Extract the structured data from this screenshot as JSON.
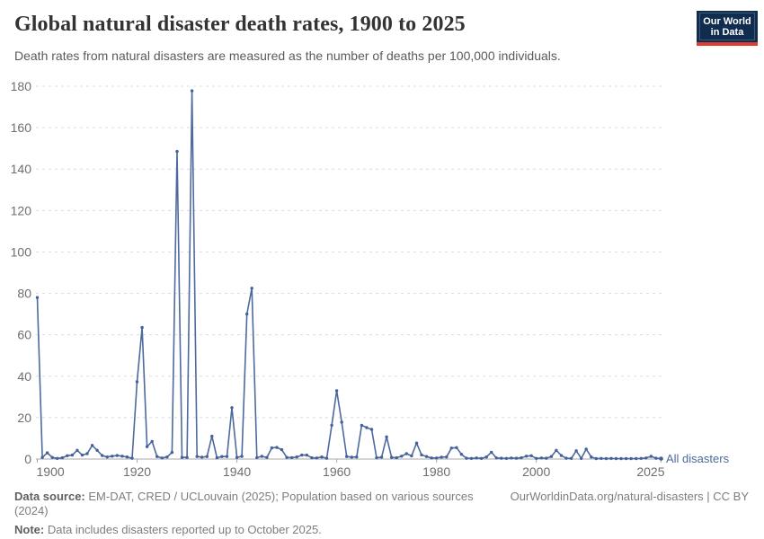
{
  "header": {
    "title": "Global natural disaster death rates, 1900 to 2025",
    "subtitle": "Death rates from natural disasters are measured as the number of deaths per 100,000 individuals."
  },
  "logo": {
    "line1": "Our World",
    "line2": "in Data",
    "bg_color": "#102d50",
    "bar_color": "#dc3e31"
  },
  "chart_data": {
    "type": "line",
    "title": "Global natural disaster death rates, 1900 to 2025",
    "series_label": "All disasters",
    "x_range": [
      1900,
      2025
    ],
    "ylim": [
      0,
      180
    ],
    "yticks": [
      0,
      20,
      40,
      60,
      80,
      100,
      120,
      140,
      160,
      180
    ],
    "xticks": [
      1900,
      1920,
      1940,
      1960,
      1980,
      2000,
      2025
    ],
    "grid": true,
    "legend_position": "right-of-line-end",
    "xlabel": "",
    "ylabel": "",
    "years": [
      1900,
      1901,
      1902,
      1903,
      1904,
      1905,
      1906,
      1907,
      1908,
      1909,
      1910,
      1911,
      1912,
      1913,
      1914,
      1915,
      1916,
      1917,
      1918,
      1919,
      1920,
      1921,
      1922,
      1923,
      1924,
      1925,
      1926,
      1927,
      1928,
      1929,
      1930,
      1931,
      1932,
      1933,
      1934,
      1935,
      1936,
      1937,
      1938,
      1939,
      1940,
      1941,
      1942,
      1943,
      1944,
      1945,
      1946,
      1947,
      1948,
      1949,
      1950,
      1951,
      1952,
      1953,
      1954,
      1955,
      1956,
      1957,
      1958,
      1959,
      1960,
      1961,
      1962,
      1963,
      1964,
      1965,
      1966,
      1967,
      1968,
      1969,
      1970,
      1971,
      1972,
      1973,
      1974,
      1975,
      1976,
      1977,
      1978,
      1979,
      1980,
      1981,
      1982,
      1983,
      1984,
      1985,
      1986,
      1987,
      1988,
      1989,
      1990,
      1991,
      1992,
      1993,
      1994,
      1995,
      1996,
      1997,
      1998,
      1999,
      2000,
      2001,
      2002,
      2003,
      2004,
      2005,
      2006,
      2007,
      2008,
      2009,
      2010,
      2011,
      2012,
      2013,
      2014,
      2015,
      2016,
      2017,
      2018,
      2019,
      2020,
      2021,
      2022,
      2023,
      2024,
      2025
    ],
    "values": [
      78,
      0.8,
      3.0,
      0.8,
      0.3,
      0.6,
      1.6,
      1.9,
      4.2,
      1.9,
      2.6,
      6.6,
      4.2,
      1.7,
      1.0,
      1.4,
      1.7,
      1.4,
      1.0,
      0.4,
      37.3,
      63.5,
      6.0,
      8.5,
      1.2,
      0.5,
      1.0,
      3.2,
      148.5,
      0.8,
      0.8,
      177.8,
      1.2,
      0.9,
      1.2,
      11.0,
      0.6,
      1.2,
      1.2,
      24.8,
      0.8,
      1.3,
      70.0,
      82.5,
      0.7,
      1.3,
      0.8,
      5.4,
      5.6,
      4.5,
      0.8,
      0.7,
      1.0,
      1.9,
      1.9,
      0.6,
      0.5,
      1.0,
      0.4,
      16.3,
      33.0,
      17.8,
      1.2,
      0.9,
      1.0,
      16.3,
      15.2,
      14.3,
      0.6,
      0.9,
      10.7,
      0.8,
      0.6,
      1.4,
      2.6,
      1.5,
      7.7,
      2.0,
      1.2,
      0.5,
      0.5,
      0.9,
      1.0,
      5.3,
      5.5,
      2.3,
      0.4,
      0.3,
      0.5,
      0.3,
      1.0,
      3.3,
      0.5,
      0.4,
      0.3,
      0.5,
      0.4,
      0.6,
      1.4,
      1.6,
      0.3,
      0.5,
      0.4,
      1.2,
      4.2,
      1.7,
      0.4,
      0.3,
      4.0,
      0.3,
      4.8,
      1.0,
      0.2,
      0.3,
      0.2,
      0.3,
      0.2,
      0.2,
      0.2,
      0.2,
      0.2,
      0.3,
      0.5,
      1.3,
      0.4,
      0.2
    ],
    "line_color": "#4d6a9e",
    "marker_color": "#44619b",
    "grid_color": "#dcdcdc",
    "axis_color": "#a9a9a9",
    "tick_label_color": "#6e6e6e"
  },
  "footer": {
    "source_label": "Data source:",
    "source_text": "EM-DAT, CRED / UCLouvain (2025); Population based on various sources (2024)",
    "link_text": "OurWorldinData.org/natural-disasters | CC BY",
    "note_label": "Note:",
    "note_text": "Data includes disasters reported up to October 2025."
  }
}
